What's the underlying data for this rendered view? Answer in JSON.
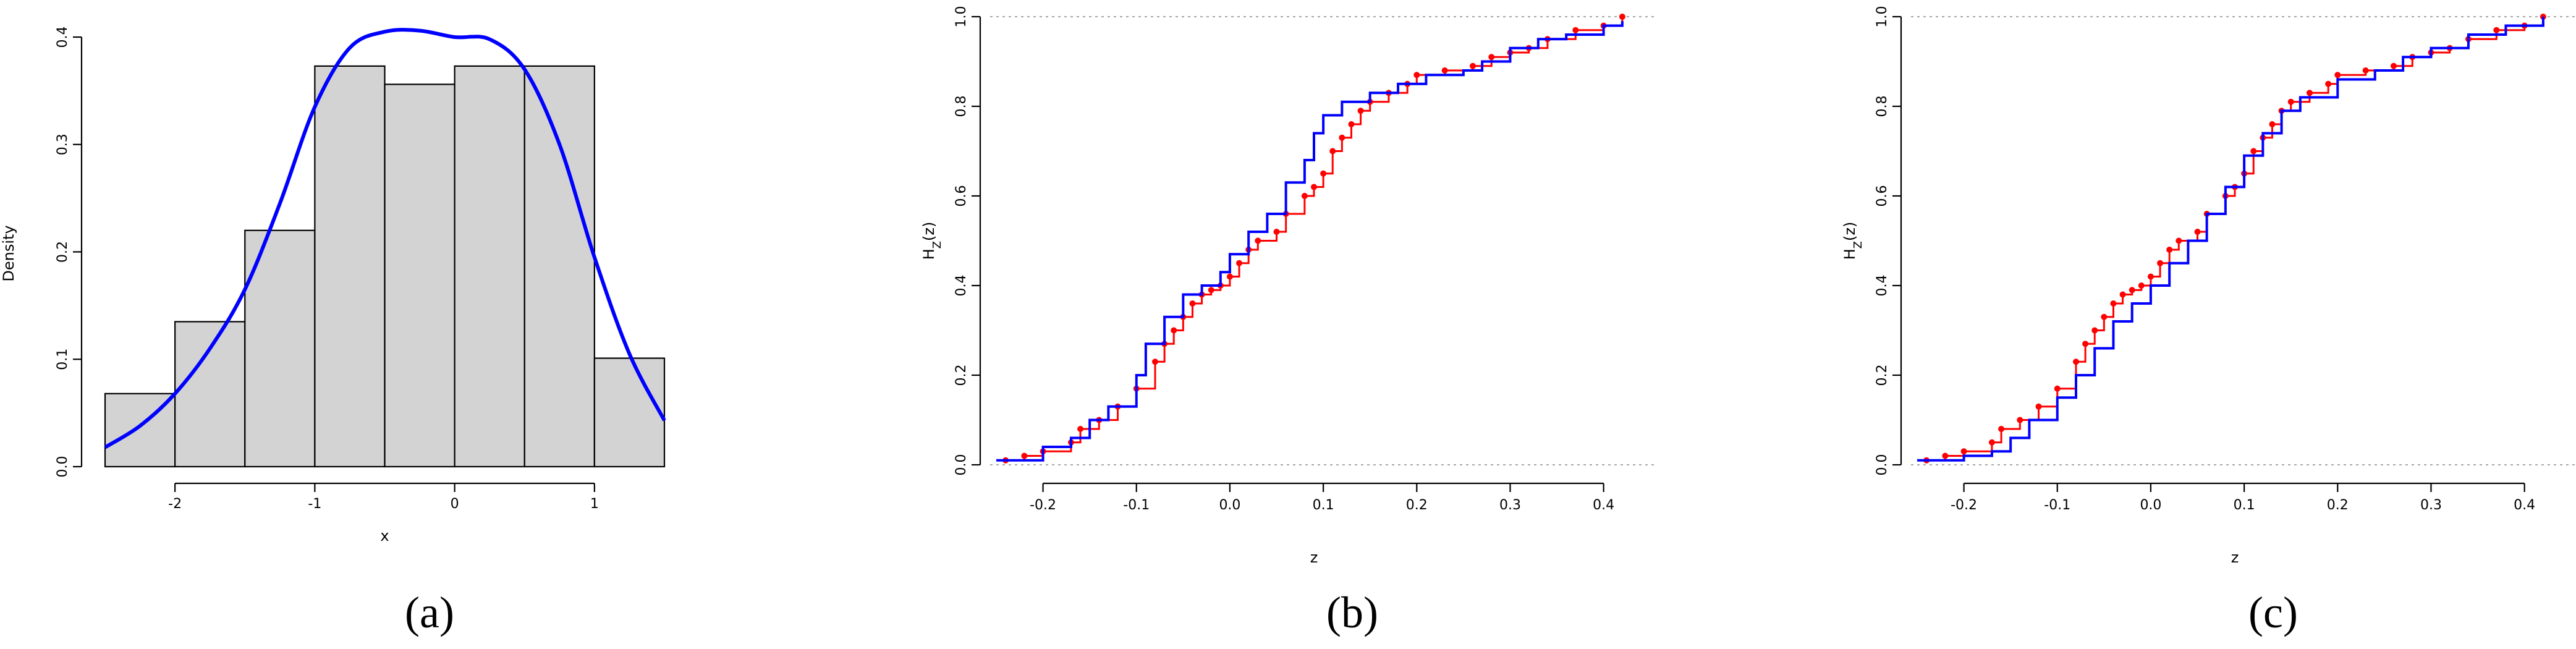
{
  "panel_labels": [
    "(a)",
    "(b)",
    "(c)"
  ],
  "colors": {
    "fit": "#0000ff",
    "empirical": "#ff0000",
    "bar_fill": "#d3d3d3",
    "ref_line": "#888888"
  },
  "chart_data": [
    {
      "type": "bar",
      "subtype": "histogram_with_density",
      "xlabel": "x",
      "ylabel": "Density",
      "xlim": [
        -2.5,
        1.5
      ],
      "ylim": [
        0,
        0.4
      ],
      "x_ticks": [
        "-2",
        "-1",
        "0",
        "1"
      ],
      "y_ticks": [
        "0.0",
        "0.1",
        "0.2",
        "0.3",
        "0.4"
      ],
      "bin_edges": [
        -2.5,
        -2.0,
        -1.5,
        -1.0,
        -0.5,
        0.0,
        0.5,
        1.0,
        1.5
      ],
      "values": [
        0.068,
        0.135,
        0.22,
        0.373,
        0.356,
        0.373,
        0.373,
        0.101
      ],
      "series": [
        {
          "x": [
            -2.5,
            -2.25,
            -2.0,
            -1.75,
            -1.5,
            -1.25,
            -1.0,
            -0.75,
            -0.5,
            -0.25,
            0.0,
            0.25,
            0.5,
            0.75,
            1.0,
            1.25,
            1.5
          ],
          "values": [
            0.018,
            0.038,
            0.068,
            0.11,
            0.165,
            0.245,
            0.335,
            0.39,
            0.405,
            0.406,
            0.4,
            0.398,
            0.37,
            0.3,
            0.195,
            0.105,
            0.043
          ]
        }
      ]
    },
    {
      "type": "line",
      "xlabel": "z",
      "ylabel": "H_Z(z)",
      "xlim": [
        -0.25,
        0.43
      ],
      "ylim": [
        0,
        1
      ],
      "x_ticks": [
        "-0.2",
        "-0.1",
        "0.0",
        "0.1",
        "0.2",
        "0.3",
        "0.4"
      ],
      "y_ticks": [
        "0.0",
        "0.2",
        "0.4",
        "0.6",
        "0.8",
        "1.0"
      ],
      "series": [
        {
          "x": [
            -0.25,
            -0.2,
            -0.17,
            -0.15,
            -0.13,
            -0.1,
            -0.09,
            -0.07,
            -0.05,
            -0.03,
            -0.01,
            0.0,
            0.02,
            0.04,
            0.06,
            0.08,
            0.09,
            0.1,
            0.12,
            0.15,
            0.18,
            0.21,
            0.25,
            0.27,
            0.3,
            0.33,
            0.36,
            0.4,
            0.42
          ],
          "values": [
            0.01,
            0.04,
            0.06,
            0.1,
            0.13,
            0.2,
            0.27,
            0.33,
            0.38,
            0.4,
            0.43,
            0.47,
            0.52,
            0.56,
            0.63,
            0.68,
            0.74,
            0.78,
            0.81,
            0.83,
            0.85,
            0.87,
            0.88,
            0.9,
            0.93,
            0.95,
            0.96,
            0.98,
            0.99
          ]
        },
        {
          "x": [
            -0.24,
            -0.22,
            -0.2,
            -0.17,
            -0.16,
            -0.14,
            -0.12,
            -0.1,
            -0.08,
            -0.07,
            -0.06,
            -0.05,
            -0.04,
            -0.03,
            -0.02,
            -0.01,
            0.0,
            0.01,
            0.02,
            0.03,
            0.05,
            0.06,
            0.08,
            0.09,
            0.1,
            0.11,
            0.12,
            0.13,
            0.14,
            0.15,
            0.17,
            0.19,
            0.2,
            0.23,
            0.26,
            0.28,
            0.3,
            0.32,
            0.34,
            0.37,
            0.4,
            0.42
          ],
          "values": [
            0.01,
            0.02,
            0.03,
            0.05,
            0.08,
            0.1,
            0.13,
            0.17,
            0.23,
            0.27,
            0.3,
            0.33,
            0.36,
            0.38,
            0.39,
            0.4,
            0.42,
            0.45,
            0.48,
            0.5,
            0.52,
            0.56,
            0.6,
            0.62,
            0.65,
            0.7,
            0.73,
            0.76,
            0.79,
            0.81,
            0.83,
            0.85,
            0.87,
            0.88,
            0.89,
            0.91,
            0.92,
            0.93,
            0.95,
            0.97,
            0.98,
            1.0
          ]
        }
      ]
    },
    {
      "type": "line",
      "xlabel": "z",
      "ylabel": "H_Z(z)",
      "xlim": [
        -0.25,
        0.43
      ],
      "ylim": [
        0,
        1
      ],
      "x_ticks": [
        "-0.2",
        "-0.1",
        "0.0",
        "0.1",
        "0.2",
        "0.3",
        "0.4"
      ],
      "y_ticks": [
        "0.0",
        "0.2",
        "0.4",
        "0.6",
        "0.8",
        "1.0"
      ],
      "series": [
        {
          "x": [
            -0.25,
            -0.2,
            -0.17,
            -0.15,
            -0.13,
            -0.1,
            -0.08,
            -0.06,
            -0.04,
            -0.02,
            0.0,
            0.02,
            0.04,
            0.06,
            0.08,
            0.1,
            0.12,
            0.14,
            0.16,
            0.2,
            0.24,
            0.27,
            0.3,
            0.34,
            0.38,
            0.42
          ],
          "values": [
            0.01,
            0.02,
            0.03,
            0.06,
            0.1,
            0.15,
            0.2,
            0.26,
            0.32,
            0.36,
            0.4,
            0.45,
            0.5,
            0.56,
            0.62,
            0.69,
            0.74,
            0.79,
            0.82,
            0.86,
            0.88,
            0.91,
            0.93,
            0.96,
            0.98,
            1.0
          ]
        },
        {
          "x": [
            -0.24,
            -0.22,
            -0.2,
            -0.17,
            -0.16,
            -0.14,
            -0.12,
            -0.1,
            -0.08,
            -0.07,
            -0.06,
            -0.05,
            -0.04,
            -0.03,
            -0.02,
            -0.01,
            0.0,
            0.01,
            0.02,
            0.03,
            0.05,
            0.06,
            0.08,
            0.09,
            0.1,
            0.11,
            0.12,
            0.13,
            0.14,
            0.15,
            0.17,
            0.19,
            0.2,
            0.23,
            0.26,
            0.28,
            0.3,
            0.32,
            0.34,
            0.37,
            0.4,
            0.42
          ],
          "values": [
            0.01,
            0.02,
            0.03,
            0.05,
            0.08,
            0.1,
            0.13,
            0.17,
            0.23,
            0.27,
            0.3,
            0.33,
            0.36,
            0.38,
            0.39,
            0.4,
            0.42,
            0.45,
            0.48,
            0.5,
            0.52,
            0.56,
            0.6,
            0.62,
            0.65,
            0.7,
            0.73,
            0.76,
            0.79,
            0.81,
            0.83,
            0.85,
            0.87,
            0.88,
            0.89,
            0.91,
            0.92,
            0.93,
            0.95,
            0.97,
            0.98,
            1.0
          ]
        }
      ]
    }
  ]
}
